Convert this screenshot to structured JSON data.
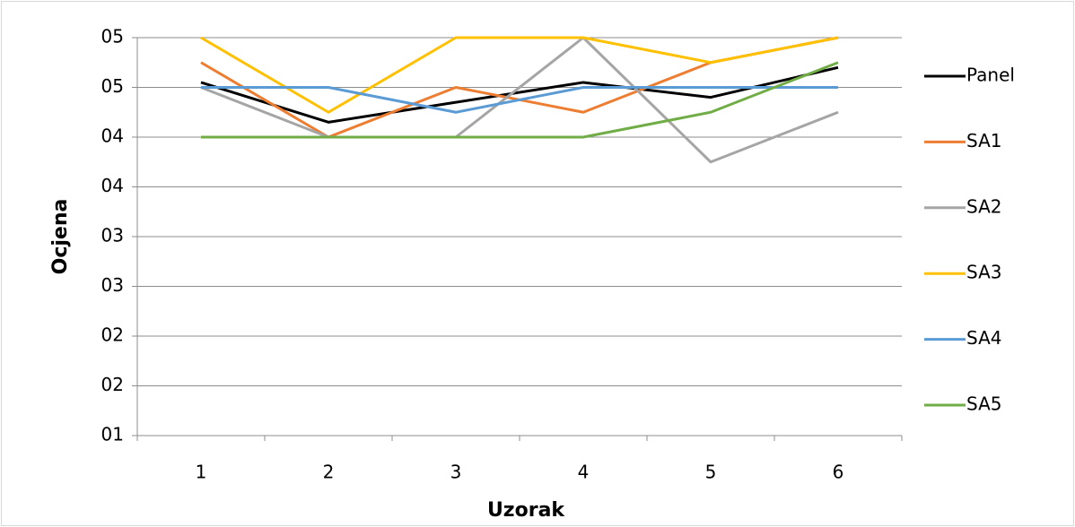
{
  "chart_data": {
    "type": "line",
    "x_label": "Uzorak",
    "y_label": "Ocjena",
    "categories": [
      "1",
      "2",
      "3",
      "4",
      "5",
      "6"
    ],
    "series": [
      {
        "name": "Panel",
        "color": "#000000",
        "values": [
          4.55,
          4.15,
          4.35,
          4.55,
          4.4,
          4.7
        ]
      },
      {
        "name": "SA1",
        "color": "#ed7d31",
        "values": [
          4.75,
          4.0,
          4.5,
          4.25,
          4.75,
          5.0
        ]
      },
      {
        "name": "SA2",
        "color": "#a5a5a5",
        "values": [
          4.5,
          4.0,
          4.0,
          5.0,
          3.75,
          4.25
        ]
      },
      {
        "name": "SA3",
        "color": "#ffc000",
        "values": [
          5.0,
          4.25,
          5.0,
          5.0,
          4.75,
          5.0
        ]
      },
      {
        "name": "SA4",
        "color": "#5b9bd5",
        "values": [
          4.5,
          4.5,
          4.25,
          4.5,
          4.5,
          4.5
        ]
      },
      {
        "name": "SA5",
        "color": "#70ad47",
        "values": [
          4.0,
          4.0,
          4.0,
          4.0,
          4.25,
          4.75
        ]
      }
    ],
    "ylim": [
      1,
      5
    ],
    "yticks": [
      {
        "value": 1,
        "label": "01"
      },
      {
        "value": 1.5,
        "label": "02"
      },
      {
        "value": 2,
        "label": "02"
      },
      {
        "value": 2.5,
        "label": "03"
      },
      {
        "value": 3,
        "label": "03"
      },
      {
        "value": 3.5,
        "label": "04"
      },
      {
        "value": 4,
        "label": "04"
      },
      {
        "value": 4.5,
        "label": "05"
      },
      {
        "value": 5,
        "label": "05"
      }
    ],
    "grid": true,
    "legend": "right"
  }
}
